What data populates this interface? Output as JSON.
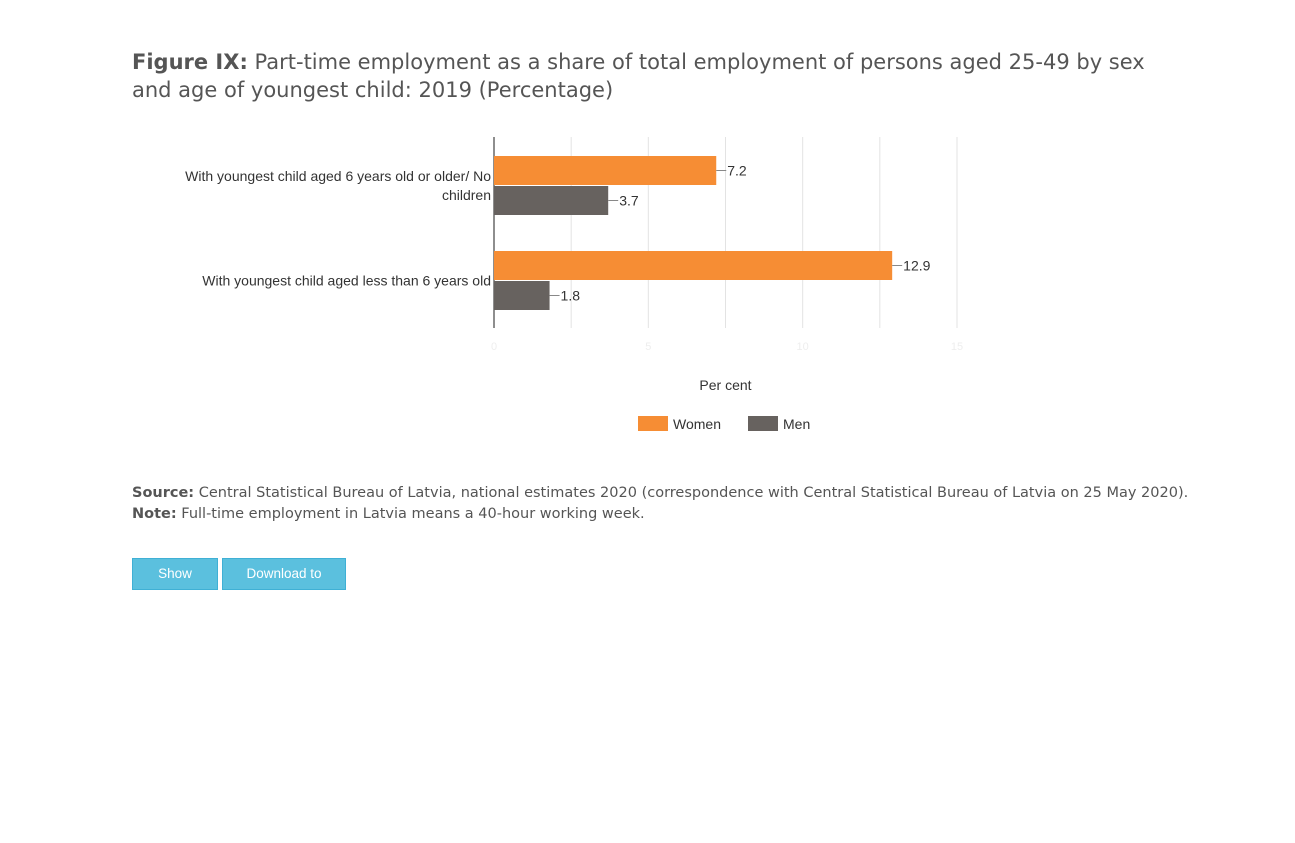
{
  "figure": {
    "lead": "Figure IX:",
    "title": "Part-time employment as a share of total employment of persons aged 25-49 by sex and age of youngest child: 2019 (Percentage)"
  },
  "chart_data": {
    "type": "bar",
    "orientation": "horizontal",
    "categories": [
      [
        "With youngest child aged 6 years old or older/ No",
        "children"
      ],
      [
        "With youngest child aged less than 6 years old"
      ]
    ],
    "series": [
      {
        "name": "Women",
        "color": "#f68d34",
        "values": [
          7.2,
          12.9
        ]
      },
      {
        "name": "Men",
        "color": "#67625f",
        "values": [
          3.7,
          1.8
        ]
      }
    ],
    "xlabel": "Per cent",
    "xlim": [
      0,
      15
    ],
    "xticks": [
      0,
      2.5,
      5,
      7.5,
      10,
      12.5,
      15
    ],
    "legend_position": "bottom",
    "grid": true
  },
  "notes": {
    "source_label": "Source:",
    "source_text": " Central Statistical Bureau of Latvia, national estimates 2020 (correspondence with Central Statistical Bureau of Latvia on 25 May 2020).",
    "note_label": "Note:",
    "note_text": " Full-time employment in Latvia means a 40-hour working week."
  },
  "buttons": {
    "show_data": "Show Data",
    "download_csv": "Download to CSV"
  }
}
